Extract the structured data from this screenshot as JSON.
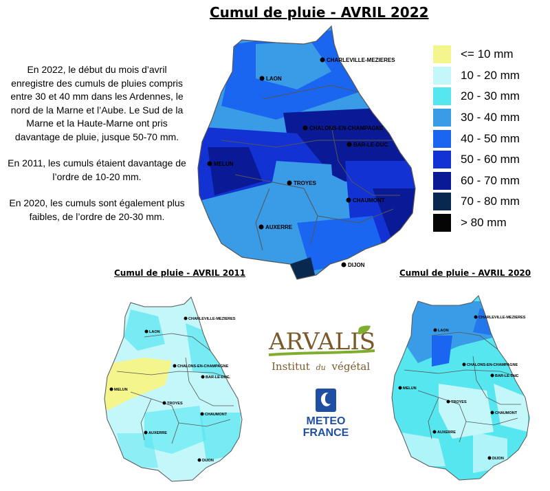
{
  "title": "Cumul de pluie - AVRIL 2022",
  "description": [
    "En 2022, le début du mois d’avril enregistre des cumuls de pluies compris entre 30 et 40 mm dans les Ardennes, le nord de la Marne et l’Aube. Le Sud de la Marne et la Haute-Marne ont pris davantage de pluie, jusque 50-70 mm.",
    "En 2011, les cumuls étaient davantage de l’ordre de 10-20 mm.",
    "En 2020, les cumuls sont également plus faibles, de l’ordre de 20-30 mm."
  ],
  "legend": [
    {
      "label": "<= 10 mm",
      "color": "#f5f58e"
    },
    {
      "label": "10 - 20 mm",
      "color": "#c4f7fa"
    },
    {
      "label": "20 - 30 mm",
      "color": "#55e6f0"
    },
    {
      "label": "30 - 40 mm",
      "color": "#3a9be6"
    },
    {
      "label": "40 - 50 mm",
      "color": "#1b66f0"
    },
    {
      "label": "50 - 60 mm",
      "color": "#1232d4"
    },
    {
      "label": "60 - 70 mm",
      "color": "#0a1a96"
    },
    {
      "label": "70 - 80 mm",
      "color": "#082850"
    },
    {
      "label": "> 80 mm",
      "color": "#050505"
    }
  ],
  "maps": {
    "main": {
      "title": "Cumul de pluie - AVRIL 2022"
    },
    "y2011": {
      "title": "Cumul  de pluie - AVRIL 2011"
    },
    "y2020": {
      "title": "Cumul  de pluie - AVRIL 2020"
    }
  },
  "cities": {
    "charleville": "CHARLEVILLE-MEZIERES",
    "laon": "LAON",
    "chalons": "CHALONS-EN-CHAMPAGNE",
    "barleduc": "BAR-LE-DUC",
    "melun": "MELUN",
    "troyes": "TROYES",
    "chaumont": "CHAUMONT",
    "auxerre": "AUXERRE",
    "dijon": "DIJON"
  },
  "logos": {
    "arvalis_name": "ARVALIS",
    "arvalis_tagline_a": "Institut",
    "arvalis_tagline_b": "du",
    "arvalis_tagline_c": "végétal",
    "meteo_line1": "METEO",
    "meteo_line2": "FRANCE"
  }
}
